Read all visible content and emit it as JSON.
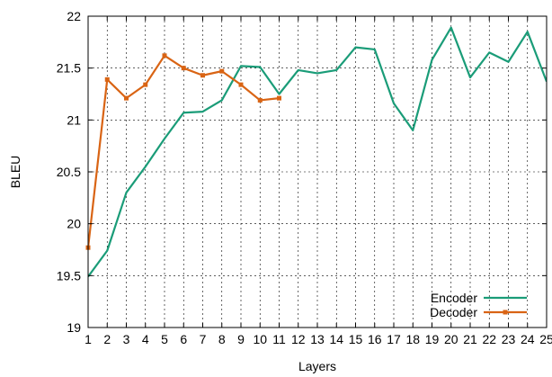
{
  "chart_data": {
    "type": "line",
    "xlabel": "Layers",
    "ylabel": "BLEU",
    "xlim": [
      1,
      25
    ],
    "ylim": [
      19,
      22
    ],
    "x_ticks": [
      "1",
      "2",
      "3",
      "4",
      "5",
      "6",
      "7",
      "8",
      "9",
      "10",
      "11",
      "12",
      "13",
      "14",
      "15",
      "16",
      "17",
      "18",
      "19",
      "20",
      "21",
      "22",
      "23",
      "24",
      "25"
    ],
    "y_ticks": [
      "19",
      "19.5",
      "20",
      "20.5",
      "21",
      "21.5",
      "22"
    ],
    "grid": true,
    "legend_position": "bottom-right",
    "series": [
      {
        "name": "Encoder",
        "color": "#1a9c78",
        "marker": "none",
        "x": [
          1,
          2,
          3,
          4,
          5,
          6,
          7,
          8,
          9,
          10,
          11,
          12,
          13,
          14,
          15,
          16,
          17,
          18,
          19,
          20,
          21,
          22,
          23,
          24,
          25
        ],
        "values": [
          19.49,
          19.74,
          20.3,
          20.55,
          20.82,
          21.07,
          21.08,
          21.19,
          21.52,
          21.51,
          21.25,
          21.48,
          21.45,
          21.48,
          21.7,
          21.68,
          21.16,
          20.9,
          21.58,
          21.89,
          21.41,
          21.65,
          21.56,
          21.85,
          21.37
        ]
      },
      {
        "name": "Decoder",
        "color": "#d96414",
        "marker": "square",
        "x": [
          1,
          2,
          3,
          4,
          5,
          6,
          7,
          8,
          9,
          10,
          11
        ],
        "values": [
          19.77,
          21.39,
          21.21,
          21.34,
          21.62,
          21.5,
          21.43,
          21.47,
          21.34,
          21.19,
          21.21
        ]
      }
    ]
  }
}
